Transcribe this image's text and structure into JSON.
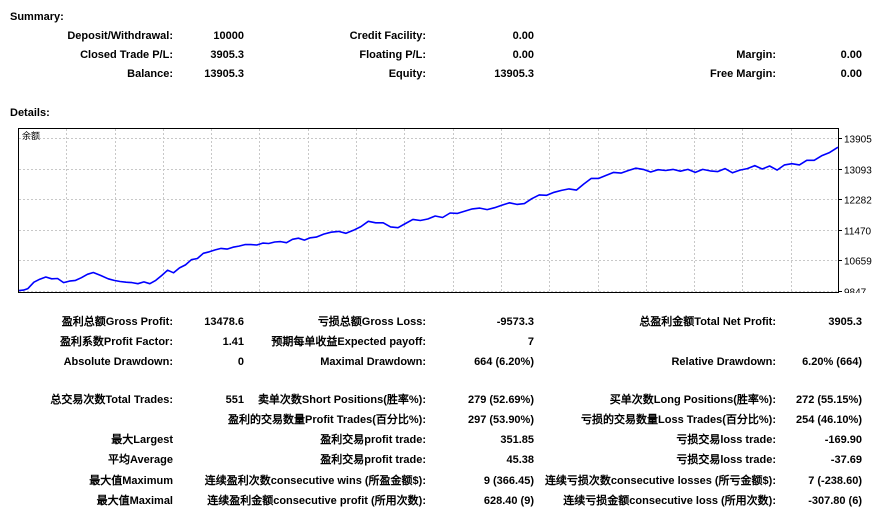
{
  "summary": {
    "title": "Summary:",
    "deposit_label": "Deposit/Withdrawal:",
    "deposit_value": "10000",
    "closed_pl_label": "Closed Trade P/L:",
    "closed_pl_value": "3905.3",
    "balance_label": "Balance:",
    "balance_value": "13905.3",
    "credit_label": "Credit Facility:",
    "credit_value": "0.00",
    "floating_label": "Floating P/L:",
    "floating_value": "0.00",
    "equity_label": "Equity:",
    "equity_value": "13905.3",
    "margin_label": "Margin:",
    "margin_value": "0.00",
    "free_margin_label": "Free Margin:",
    "free_margin_value": "0.00"
  },
  "details": {
    "title": "Details:",
    "rows": [
      [
        "盈利总额Gross Profit:",
        "13478.6",
        "亏损总额Gross Loss:",
        "-9573.3",
        "总盈利金额Total Net Profit:",
        "3905.3"
      ],
      [
        "盈利系数Profit Factor:",
        "1.41",
        "预期每单收益Expected payoff:",
        "7",
        "",
        ""
      ],
      [
        "Absolute Drawdown:",
        "0",
        "Maximal Drawdown:",
        "664 (6.20%)",
        "Relative Drawdown:",
        "6.20% (664)"
      ],
      [
        "总交易次数Total Trades:",
        "551",
        "卖单次数Short Positions(胜率%):",
        "279 (52.69%)",
        "买单次数Long Positions(胜率%):",
        "272 (55.15%)"
      ],
      [
        "",
        "",
        "盈利的交易数量Profit Trades(百分比%):",
        "297 (53.90%)",
        "亏损的交易数量Loss Trades(百分比%):",
        "254 (46.10%)"
      ],
      [
        "最大Largest",
        "",
        "盈利交易profit trade:",
        "351.85",
        "亏损交易loss trade:",
        "-169.90"
      ],
      [
        "平均Average",
        "",
        "盈利交易profit trade:",
        "45.38",
        "亏损交易loss trade:",
        "-37.69"
      ],
      [
        "最大值Maximum",
        "",
        "连续盈利次数consecutive wins (所盈金额$):",
        "9 (366.45)",
        "连续亏损次数consecutive losses (所亏金额$):",
        "7 (-238.60)"
      ],
      [
        "最大值Maximal",
        "",
        "连续盈利金额consecutive profit (所用次数):",
        "628.40 (9)",
        "连续亏损金额consecutive loss (所用次数):",
        "-307.80 (6)"
      ]
    ]
  },
  "chart_data": {
    "type": "line",
    "title": "余额",
    "x_range": [
      0,
      551
    ],
    "ylim": [
      9847,
      14020
    ],
    "y_ticks": [
      9847,
      10659,
      11470,
      12282,
      13093,
      13905
    ],
    "y_tick_labels": [
      "9847",
      "10659",
      "11470",
      "12282",
      "13093",
      "13905"
    ],
    "grid": true,
    "line_color": "#0000ff",
    "series": [
      {
        "x": [
          0,
          3,
          6,
          10,
          14,
          18,
          22,
          26,
          30,
          34,
          38,
          42,
          46,
          50,
          55,
          60,
          64,
          68,
          72,
          76,
          80,
          84,
          88,
          92,
          96,
          100,
          104,
          108,
          112,
          116,
          120,
          124,
          128,
          132,
          136,
          140,
          144,
          148,
          152,
          156,
          160,
          164,
          168,
          172,
          176,
          180,
          184,
          188,
          192,
          196,
          200,
          205,
          210,
          215,
          220,
          225,
          230,
          235,
          240,
          245,
          250,
          255,
          260,
          265,
          270,
          275,
          280,
          285,
          290,
          295,
          300,
          305,
          310,
          315,
          320,
          325,
          330,
          335,
          340,
          345,
          350,
          355,
          360,
          365,
          370,
          375,
          380,
          385,
          390,
          395,
          400,
          405,
          410,
          415,
          420,
          425,
          430,
          435,
          440,
          445,
          450,
          455,
          460,
          465,
          470,
          475,
          480,
          485,
          490,
          495,
          500,
          505,
          510,
          515,
          520,
          525,
          530,
          535,
          540,
          545,
          551
        ],
        "values": [
          9860,
          9870,
          9910,
          10080,
          10160,
          10220,
          10170,
          10180,
          10070,
          10110,
          10130,
          10200,
          10290,
          10340,
          10260,
          10170,
          10130,
          10100,
          10080,
          10070,
          10040,
          10090,
          10040,
          10130,
          10260,
          10400,
          10330,
          10460,
          10540,
          10680,
          10710,
          10850,
          10890,
          10940,
          10980,
          10960,
          11010,
          11040,
          11080,
          11080,
          11070,
          11120,
          11110,
          11150,
          11160,
          11130,
          11220,
          11250,
          11200,
          11260,
          11280,
          11360,
          11410,
          11430,
          11380,
          11460,
          11560,
          11700,
          11660,
          11660,
          11550,
          11530,
          11640,
          11750,
          11720,
          11760,
          11840,
          11800,
          11920,
          11910,
          11970,
          12030,
          12050,
          12010,
          12060,
          12130,
          12190,
          12150,
          12170,
          12300,
          12400,
          12390,
          12470,
          12520,
          12560,
          12530,
          12690,
          12840,
          12840,
          12920,
          13000,
          12980,
          13050,
          13110,
          13080,
          13010,
          13070,
          13050,
          13080,
          13030,
          13080,
          13000,
          13080,
          13040,
          13020,
          13100,
          12990,
          13060,
          13100,
          13180,
          13090,
          13170,
          13060,
          13200,
          13230,
          13200,
          13320,
          13320,
          13440,
          13520,
          13670
        ]
      }
    ]
  }
}
